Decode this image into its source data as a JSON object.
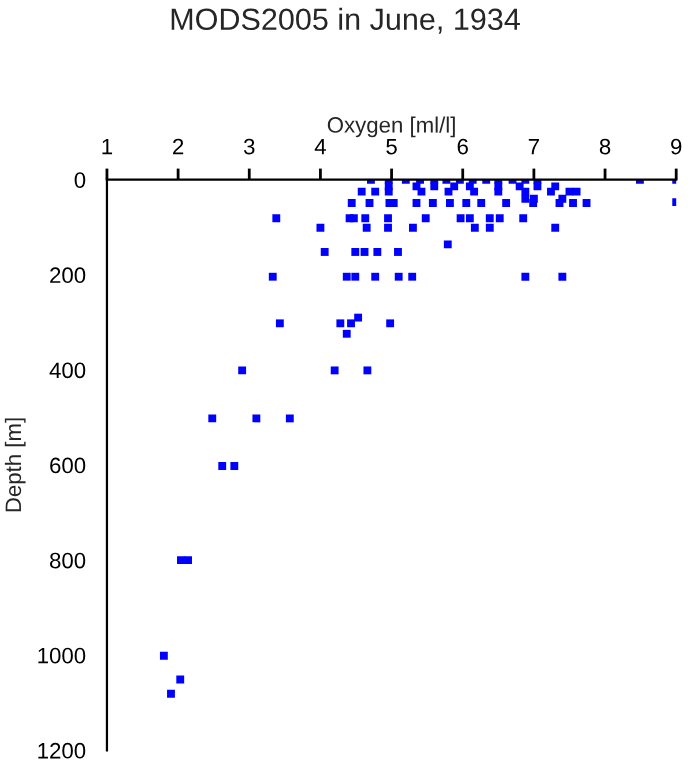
{
  "chart_data": {
    "type": "scatter",
    "title": "MODS2005 in June, 1934",
    "xlabel": "Oxygen [ml/l]",
    "ylabel": "Depth [m]",
    "x": [
      4.71,
      4.96,
      5.2,
      5.4,
      5.6,
      5.77,
      5.96,
      6.14,
      6.33,
      6.5,
      6.7,
      6.88,
      7.05,
      8.49,
      9.0,
      4.96,
      5.35,
      5.6,
      5.88,
      6.1,
      6.5,
      6.8,
      7.05,
      7.3,
      4.58,
      4.77,
      4.96,
      5.42,
      5.8,
      6.16,
      6.5,
      6.88,
      7.24,
      7.5,
      7.6,
      6.88,
      7.0,
      7.4,
      9.0,
      4.44,
      4.69,
      4.97,
      5.03,
      5.35,
      5.58,
      5.82,
      6.05,
      6.26,
      6.61,
      6.99,
      7.36,
      7.55,
      7.74,
      3.38,
      4.41,
      4.47,
      4.63,
      4.95,
      5.48,
      5.97,
      6.1,
      6.38,
      6.52,
      6.85,
      4.0,
      4.65,
      4.95,
      5.3,
      6.17,
      6.38,
      7.3,
      5.79,
      4.06,
      4.49,
      4.62,
      4.8,
      5.09,
      3.33,
      4.37,
      4.49,
      4.77,
      5.1,
      5.29,
      6.88,
      7.4,
      3.43,
      4.28,
      4.43,
      4.53,
      4.98,
      4.37,
      2.9,
      4.2,
      4.66,
      2.48,
      3.1,
      3.57,
      2.62,
      2.79,
      2.04,
      2.14,
      1.8,
      2.03,
      1.9
    ],
    "values": [
      0,
      0,
      0,
      0,
      0,
      0,
      0,
      0,
      0,
      0,
      0,
      0,
      0,
      0,
      0,
      14,
      14,
      14,
      14,
      14,
      14,
      14,
      14,
      14,
      25,
      25,
      25,
      25,
      25,
      25,
      25,
      25,
      25,
      25,
      25,
      40,
      40,
      40,
      47,
      49,
      49,
      49,
      49,
      49,
      49,
      49,
      49,
      49,
      49,
      49,
      49,
      49,
      49,
      81,
      81,
      81,
      81,
      81,
      81,
      81,
      81,
      81,
      81,
      81,
      101,
      101,
      101,
      101,
      101,
      101,
      101,
      136,
      152,
      152,
      152,
      152,
      152,
      204,
      204,
      204,
      204,
      204,
      204,
      204,
      204,
      302,
      302,
      302,
      290,
      302,
      324,
      401,
      401,
      401,
      502,
      502,
      502,
      602,
      602,
      800,
      800,
      1001,
      1051,
      1081
    ],
    "color": "#0000ff",
    "marker": "square",
    "xlim": [
      1,
      9
    ],
    "xticks": [
      1,
      2,
      3,
      4,
      5,
      6,
      7,
      8,
      9
    ],
    "ylim": [
      1200,
      0
    ],
    "yticks": [
      0,
      200,
      400,
      600,
      800,
      1000,
      1200
    ],
    "grid": false
  }
}
